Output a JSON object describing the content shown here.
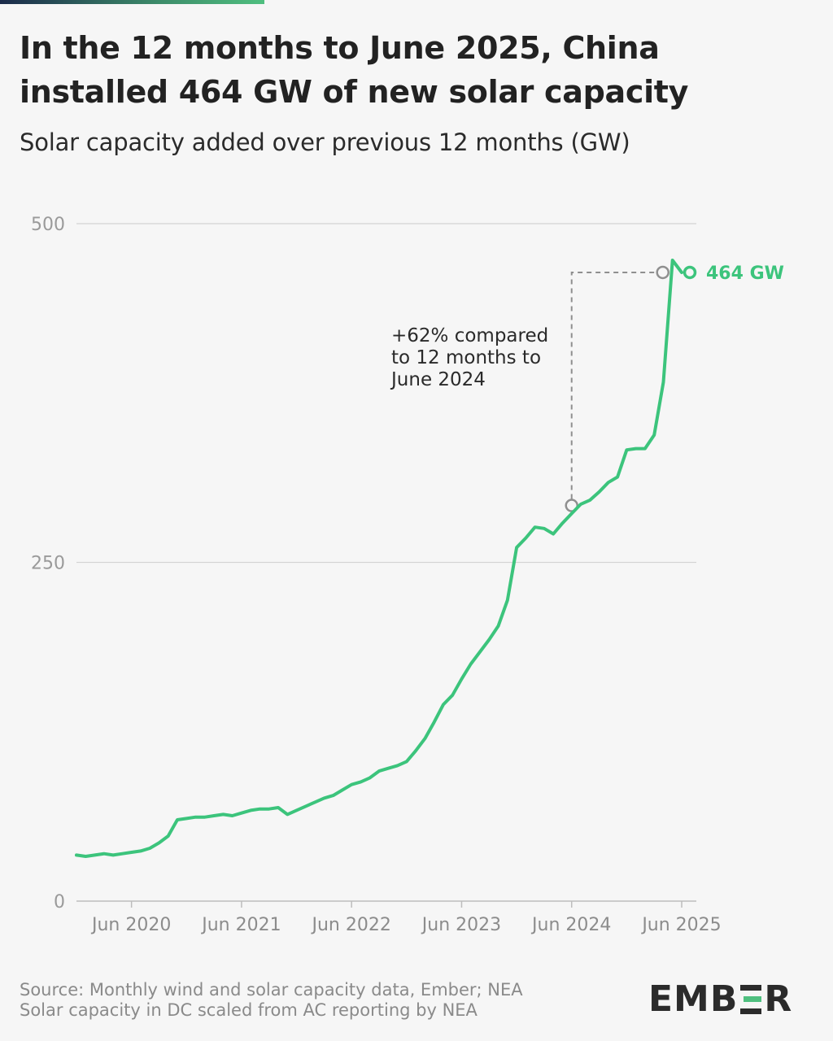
{
  "header": {
    "title": "In the 12 months to June 2025, China installed 464 GW of new solar capacity",
    "subtitle": "Solar capacity added over previous 12 months (GW)"
  },
  "footer": {
    "source_line1": "Source: Monthly wind and solar capacity data, Ember; NEA",
    "source_line2": "Solar capacity in DC scaled from AC reporting by NEA"
  },
  "brand": {
    "logo_text_left": "EMB",
    "logo_text_right": "R",
    "accent_color": "#3cc47c",
    "annotation_color": "#8f8f8f"
  },
  "chart_data": {
    "type": "line",
    "ylim": [
      0,
      500
    ],
    "yticks": [
      0,
      250,
      500
    ],
    "x_tick_labels": [
      "Jun 2020",
      "Jun 2021",
      "Jun 2022",
      "Jun 2023",
      "Jun 2024",
      "Jun 2025"
    ],
    "x_start": "2019-12",
    "x_end": "2025-06",
    "series": [
      {
        "color": "#3cc47c",
        "points": [
          [
            "2019-12",
            34
          ],
          [
            "2020-01",
            33
          ],
          [
            "2020-02",
            34
          ],
          [
            "2020-03",
            35
          ],
          [
            "2020-04",
            34
          ],
          [
            "2020-05",
            35
          ],
          [
            "2020-06",
            36
          ],
          [
            "2020-07",
            37
          ],
          [
            "2020-08",
            39
          ],
          [
            "2020-09",
            43
          ],
          [
            "2020-10",
            48
          ],
          [
            "2020-11",
            60
          ],
          [
            "2020-12",
            61
          ],
          [
            "2021-01",
            62
          ],
          [
            "2021-02",
            62
          ],
          [
            "2021-03",
            63
          ],
          [
            "2021-04",
            64
          ],
          [
            "2021-05",
            63
          ],
          [
            "2021-06",
            65
          ],
          [
            "2021-07",
            67
          ],
          [
            "2021-08",
            68
          ],
          [
            "2021-09",
            68
          ],
          [
            "2021-10",
            69
          ],
          [
            "2021-11",
            64
          ],
          [
            "2021-12",
            67
          ],
          [
            "2022-01",
            70
          ],
          [
            "2022-02",
            73
          ],
          [
            "2022-03",
            76
          ],
          [
            "2022-04",
            78
          ],
          [
            "2022-05",
            82
          ],
          [
            "2022-06",
            86
          ],
          [
            "2022-07",
            88
          ],
          [
            "2022-08",
            91
          ],
          [
            "2022-09",
            96
          ],
          [
            "2022-10",
            98
          ],
          [
            "2022-11",
            100
          ],
          [
            "2022-12",
            103
          ],
          [
            "2023-01",
            111
          ],
          [
            "2023-02",
            120
          ],
          [
            "2023-03",
            132
          ],
          [
            "2023-04",
            145
          ],
          [
            "2023-05",
            152
          ],
          [
            "2023-06",
            164
          ],
          [
            "2023-07",
            175
          ],
          [
            "2023-08",
            184
          ],
          [
            "2023-09",
            193
          ],
          [
            "2023-10",
            203
          ],
          [
            "2023-11",
            222
          ],
          [
            "2023-12",
            261
          ],
          [
            "2024-01",
            268
          ],
          [
            "2024-02",
            276
          ],
          [
            "2024-03",
            275
          ],
          [
            "2024-04",
            271
          ],
          [
            "2024-05",
            279
          ],
          [
            "2024-06",
            286
          ],
          [
            "2024-07",
            293
          ],
          [
            "2024-08",
            296
          ],
          [
            "2024-09",
            302
          ],
          [
            "2024-10",
            309
          ],
          [
            "2024-11",
            313
          ],
          [
            "2024-12",
            333
          ],
          [
            "2025-01",
            334
          ],
          [
            "2025-02",
            334
          ],
          [
            "2025-03",
            344
          ],
          [
            "2025-04",
            383
          ],
          [
            "2025-05",
            473
          ],
          [
            "2025-06",
            464
          ]
        ]
      }
    ],
    "end_label": "464 GW",
    "annotation": {
      "from": [
        "2024-06",
        292
      ],
      "to": [
        "2025-05",
        464
      ],
      "lines": [
        "+62% compared",
        "to 12 months to",
        "June 2024"
      ]
    }
  }
}
